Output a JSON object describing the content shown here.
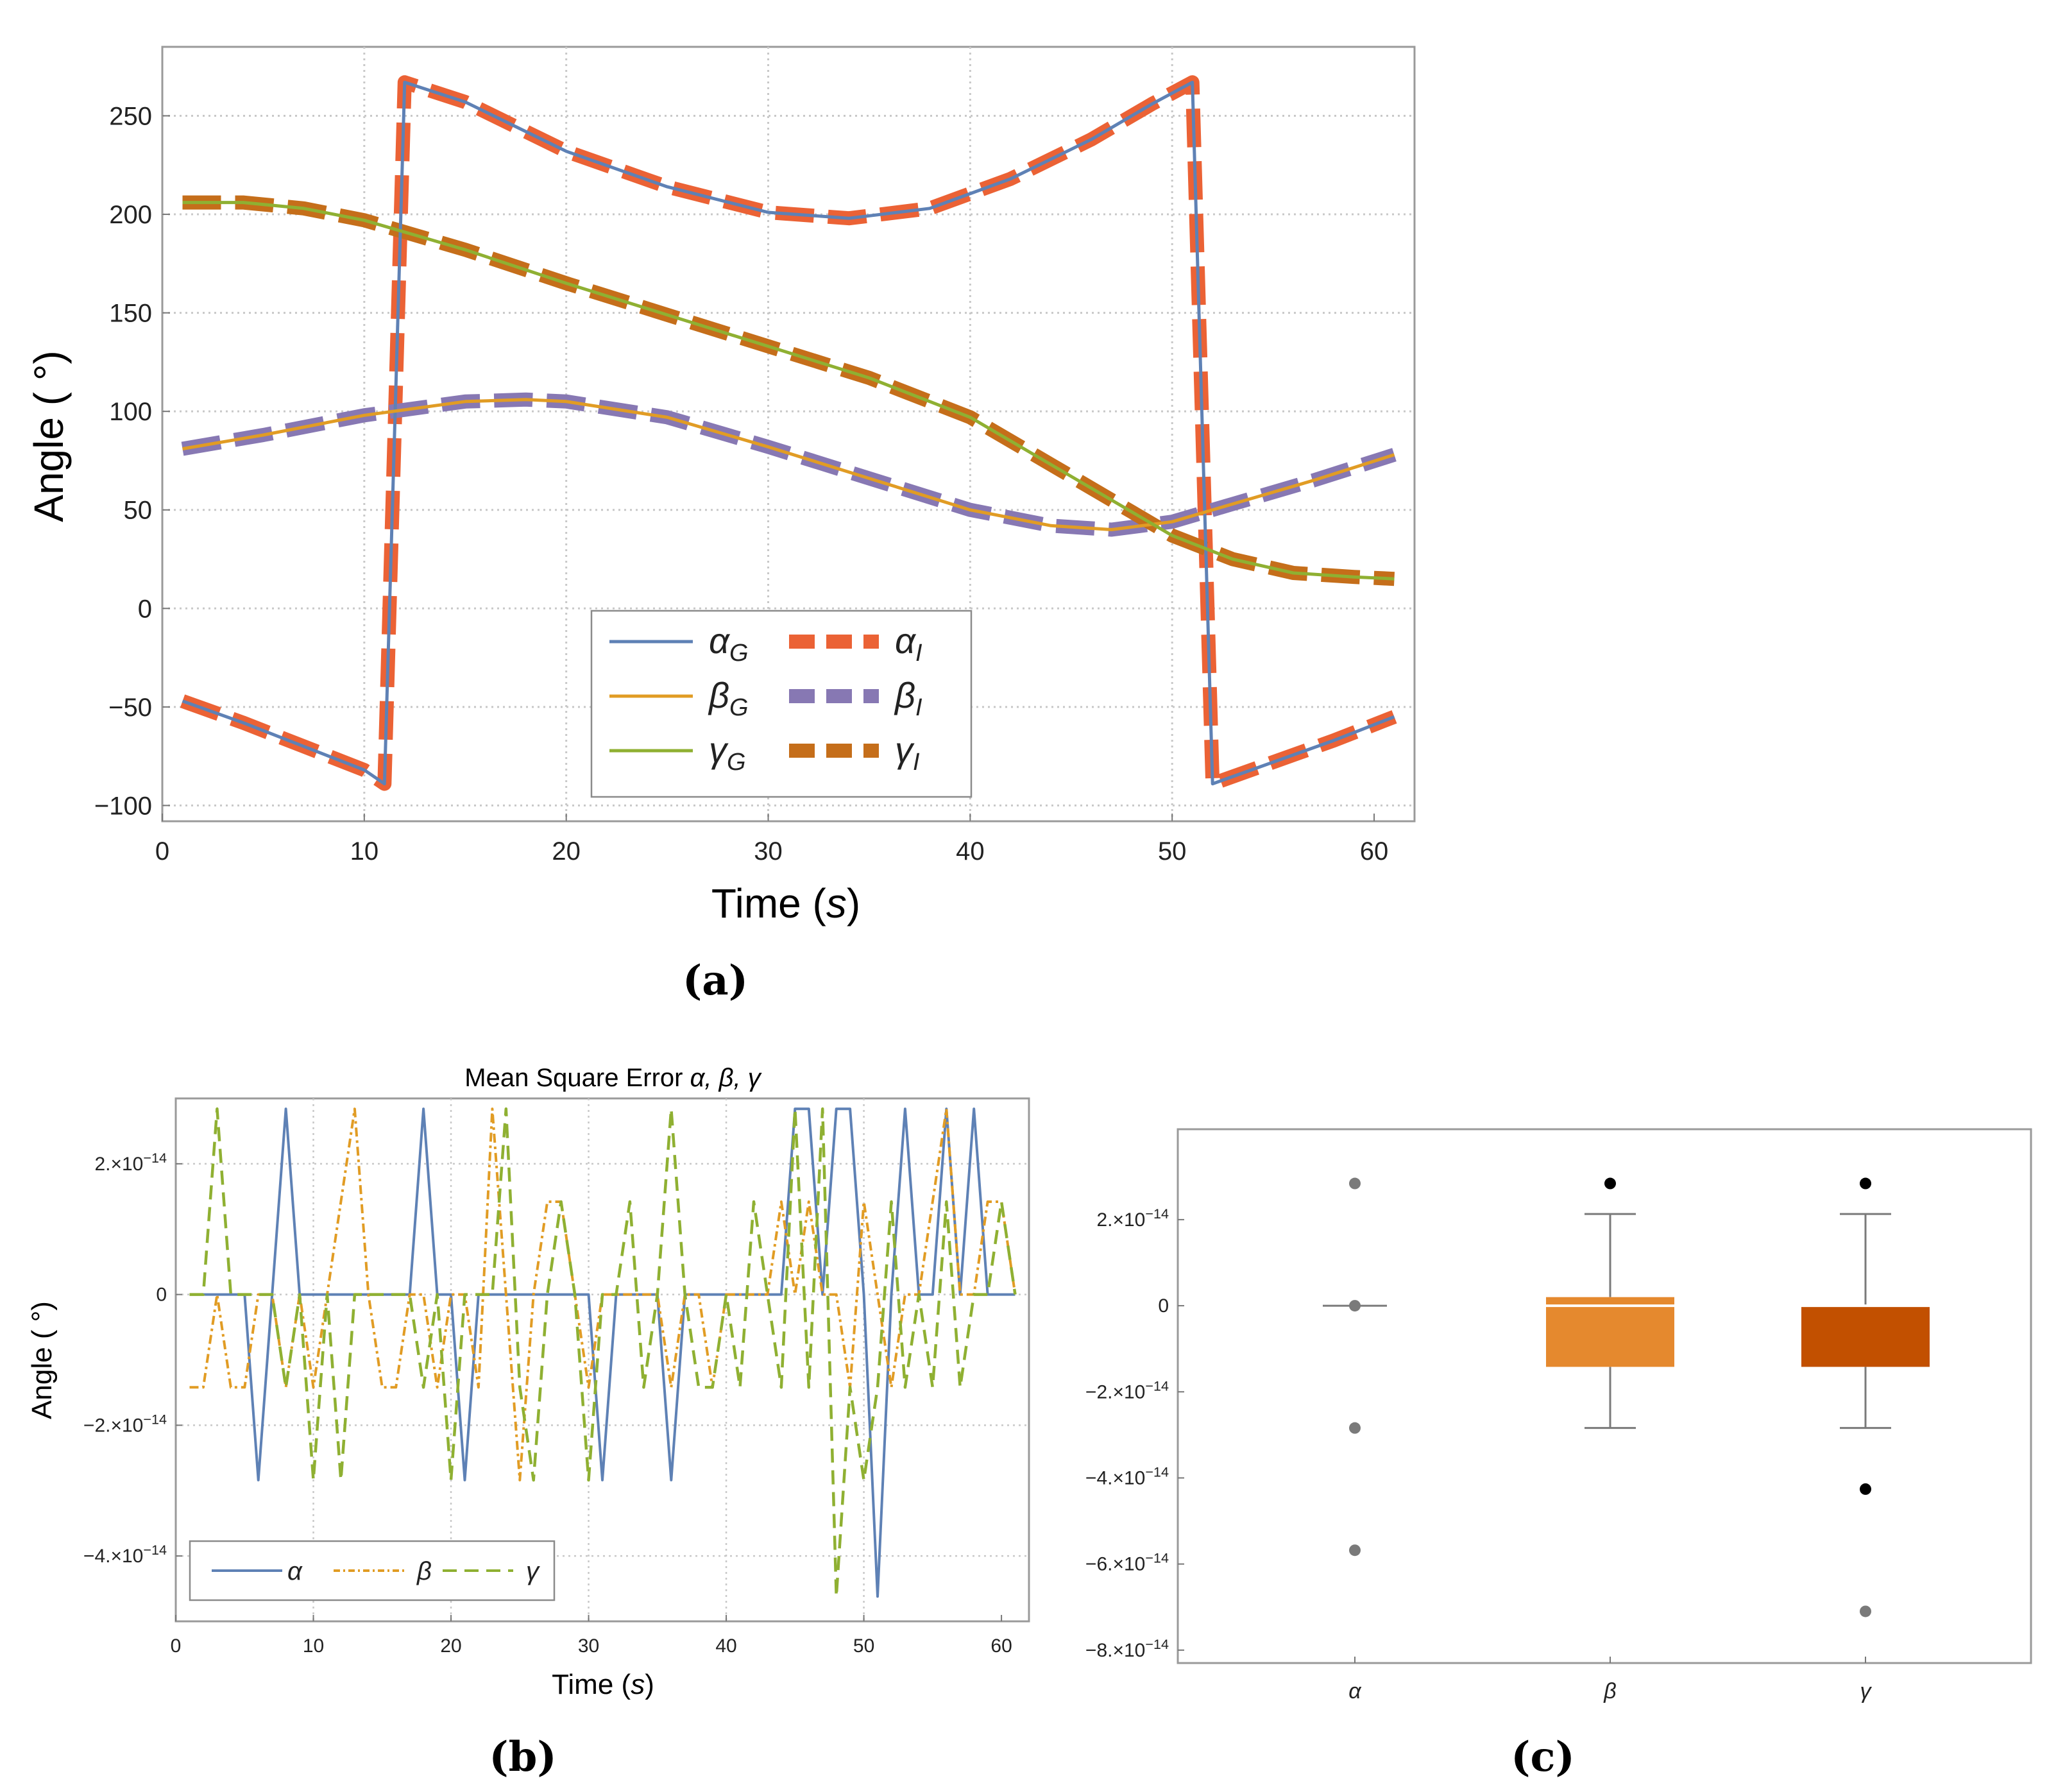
{
  "colors": {
    "alpha_g": "#5e81b5",
    "beta_g": "#e19c24",
    "gamma_g": "#8fb032",
    "alpha_i": "#eb6235",
    "beta_i": "#8778b3",
    "gamma_i": "#c56e1a",
    "box_beta": "#e5892e",
    "box_gamma": "#c25000",
    "grid": "#c8c8c8",
    "frame": "#9a9a9a"
  },
  "captions": {
    "a": "(a)",
    "b": "(b)",
    "c": "(c)"
  },
  "chart_data": [
    {
      "id": "a",
      "type": "line",
      "xlabel_main": "Time (",
      "xlabel_unit": "s",
      "xlabel_close": ")",
      "ylabel": "Angle ( °)",
      "xlim": [
        0,
        62
      ],
      "ylim": [
        -108,
        285
      ],
      "xticks": [
        "0",
        "10",
        "20",
        "30",
        "40",
        "50",
        "60"
      ],
      "xtick_values": [
        0,
        10,
        20,
        30,
        40,
        50,
        60
      ],
      "yticks": [
        "−100",
        "−50",
        "0",
        "50",
        "100",
        "150",
        "200",
        "250"
      ],
      "ytick_values": [
        -100,
        -50,
        0,
        50,
        100,
        150,
        200,
        250
      ],
      "grid_x": [
        10,
        20,
        30,
        40,
        50
      ],
      "grid_y": [
        -100,
        -50,
        0,
        50,
        100,
        150,
        200,
        250
      ],
      "legend": [
        {
          "sym": "α",
          "sub": "G",
          "key": "alpha_g",
          "style": "solid"
        },
        {
          "sym": "α",
          "sub": "I",
          "key": "alpha_i",
          "style": "dash-thick"
        },
        {
          "sym": "β",
          "sub": "G",
          "key": "beta_g",
          "style": "solid"
        },
        {
          "sym": "β",
          "sub": "I",
          "key": "beta_i",
          "style": "dash-thick"
        },
        {
          "sym": "γ",
          "sub": "G",
          "key": "gamma_g",
          "style": "solid"
        },
        {
          "sym": "γ",
          "sub": "I",
          "key": "gamma_i",
          "style": "dash-thick"
        }
      ],
      "series": [
        {
          "name": "alpha",
          "x": [
            1,
            4,
            7,
            10,
            11,
            12,
            15,
            20,
            25,
            30,
            34,
            38,
            42,
            46,
            49,
            51,
            52,
            55,
            58,
            61
          ],
          "y": [
            -47,
            -58,
            -70,
            -82,
            -89,
            267,
            257,
            232,
            214,
            201,
            198,
            203,
            218,
            238,
            256,
            267,
            -89,
            -78,
            -67,
            -55
          ]
        },
        {
          "name": "beta",
          "x": [
            1,
            5,
            10,
            15,
            18,
            20,
            25,
            30,
            35,
            40,
            44,
            47,
            50,
            53,
            57,
            61
          ],
          "y": [
            81,
            88,
            98,
            105,
            106,
            105,
            97,
            82,
            66,
            50,
            42,
            40,
            44,
            53,
            65,
            78
          ]
        },
        {
          "name": "gamma",
          "x": [
            1,
            4,
            7,
            10,
            15,
            20,
            25,
            30,
            35,
            40,
            45,
            48,
            50,
            53,
            56,
            59,
            61
          ],
          "y": [
            206,
            206,
            203,
            197,
            182,
            165,
            149,
            133,
            117,
            97,
            67,
            49,
            37,
            25,
            18,
            16,
            15
          ]
        }
      ]
    },
    {
      "id": "b",
      "type": "line",
      "title_prefix": "Mean Square Error ",
      "title_syms": "α, β, γ",
      "xlabel_main": "Time (",
      "xlabel_unit": "s",
      "xlabel_close": ")",
      "ylabel": "Angle ( °)",
      "xlim": [
        0,
        62
      ],
      "ylim": [
        -5e-14,
        3e-14
      ],
      "xticks": [
        "0",
        "10",
        "20",
        "30",
        "40",
        "50",
        "60"
      ],
      "xtick_values": [
        0,
        10,
        20,
        30,
        40,
        50,
        60
      ],
      "yticks": [
        {
          "v": 2e-14,
          "m": "2.×10",
          "e": "−14"
        },
        {
          "v": 0,
          "m": "0",
          "e": ""
        },
        {
          "v": -2e-14,
          "m": "−2.×10",
          "e": "−14"
        },
        {
          "v": -4e-14,
          "m": "−4.×10",
          "e": "−14"
        }
      ],
      "grid_x": [
        10,
        20,
        30,
        40,
        50
      ],
      "grid_y": [
        2e-14,
        0,
        -2e-14,
        -4e-14
      ],
      "legend": [
        {
          "sym": "α",
          "key": "alpha_g",
          "style": "solid"
        },
        {
          "sym": "β",
          "key": "beta_g",
          "style": "dotdash"
        },
        {
          "sym": "γ",
          "key": "gamma_g",
          "style": "dash"
        }
      ],
      "series": [
        {
          "name": "alpha",
          "x": [
            1,
            2,
            3,
            4,
            5,
            6,
            7,
            8,
            9,
            10,
            11,
            12,
            13,
            14,
            15,
            16,
            17,
            18,
            19,
            20,
            21,
            22,
            23,
            24,
            25,
            26,
            27,
            28,
            29,
            30,
            31,
            32,
            33,
            34,
            35,
            36,
            37,
            38,
            39,
            40,
            41,
            42,
            43,
            44,
            45,
            46,
            47,
            48,
            49,
            50,
            51,
            52,
            53,
            54,
            55,
            56,
            57,
            58,
            59,
            60,
            61
          ],
          "y": [
            0,
            0,
            0,
            0,
            0,
            -2.84e-14,
            0,
            2.84e-14,
            0,
            0,
            0,
            0,
            0,
            0,
            0,
            0,
            0,
            2.84e-14,
            0,
            0,
            -2.84e-14,
            0,
            0,
            0,
            0,
            0,
            0,
            0,
            0,
            0,
            -2.84e-14,
            0,
            0,
            0,
            0,
            -2.84e-14,
            0,
            0,
            0,
            0,
            0,
            0,
            0,
            0,
            2.84e-14,
            2.84e-14,
            0,
            2.84e-14,
            2.84e-14,
            0,
            -4.62e-14,
            0,
            2.84e-14,
            0,
            0,
            2.84e-14,
            0,
            2.84e-14,
            0,
            0,
            0
          ]
        },
        {
          "name": "beta",
          "x": [
            1,
            2,
            3,
            4,
            5,
            6,
            7,
            8,
            9,
            10,
            11,
            12,
            13,
            14,
            15,
            16,
            17,
            18,
            19,
            20,
            21,
            22,
            23,
            24,
            25,
            26,
            27,
            28,
            29,
            30,
            31,
            32,
            33,
            34,
            35,
            36,
            37,
            38,
            39,
            40,
            41,
            42,
            43,
            44,
            45,
            46,
            47,
            48,
            49,
            50,
            51,
            52,
            53,
            54,
            55,
            56,
            57,
            58,
            59,
            60,
            61
          ],
          "y": [
            -1.42e-14,
            -1.42e-14,
            0,
            -1.42e-14,
            -1.42e-14,
            0,
            0,
            -1.42e-14,
            0,
            -1.42e-14,
            0,
            1.42e-14,
            2.84e-14,
            0,
            -1.42e-14,
            -1.42e-14,
            0,
            0,
            -1.42e-14,
            0,
            0,
            -1.42e-14,
            2.84e-14,
            0,
            -2.84e-14,
            0,
            1.42e-14,
            1.42e-14,
            0,
            -1.42e-14,
            0,
            0,
            0,
            0,
            0,
            -1.42e-14,
            0,
            0,
            -1.42e-14,
            0,
            0,
            0,
            0,
            1.42e-14,
            0,
            1.42e-14,
            0,
            0,
            -1.42e-14,
            1.42e-14,
            0,
            -1.42e-14,
            0,
            0,
            1.42e-14,
            2.84e-14,
            0,
            0,
            1.42e-14,
            1.42e-14,
            0
          ]
        },
        {
          "name": "gamma",
          "x": [
            1,
            2,
            3,
            4,
            5,
            6,
            7,
            8,
            9,
            10,
            11,
            12,
            13,
            14,
            15,
            16,
            17,
            18,
            19,
            20,
            21,
            22,
            23,
            24,
            25,
            26,
            27,
            28,
            29,
            30,
            31,
            32,
            33,
            34,
            35,
            36,
            37,
            38,
            39,
            40,
            41,
            42,
            43,
            44,
            45,
            46,
            47,
            48,
            49,
            50,
            51,
            52,
            53,
            54,
            55,
            56,
            57,
            58,
            59,
            60,
            61
          ],
          "y": [
            0,
            0,
            2.84e-14,
            0,
            0,
            0,
            0,
            -1.42e-14,
            0,
            -2.84e-14,
            0,
            -2.84e-14,
            0,
            0,
            0,
            0,
            0,
            -1.42e-14,
            0,
            -2.84e-14,
            0,
            0,
            0,
            2.84e-14,
            -1.42e-14,
            -2.84e-14,
            0,
            1.42e-14,
            0,
            -2.84e-14,
            0,
            0,
            1.42e-14,
            -1.42e-14,
            0,
            2.84e-14,
            0,
            -1.42e-14,
            -1.42e-14,
            0,
            -1.42e-14,
            1.42e-14,
            0,
            -1.42e-14,
            2.84e-14,
            -1.42e-14,
            2.84e-14,
            -4.62e-14,
            -1.42e-14,
            -2.84e-14,
            -1.42e-14,
            1.42e-14,
            -1.42e-14,
            0,
            -1.42e-14,
            1.42e-14,
            -1.42e-14,
            0,
            0,
            1.42e-14,
            0
          ]
        }
      ]
    },
    {
      "id": "c",
      "type": "box",
      "categories": [
        "α",
        "β",
        "γ"
      ],
      "ylim": [
        -8.3e-14,
        4.1e-14
      ],
      "yticks": [
        {
          "v": 2e-14,
          "m": "2.×10",
          "e": "−14"
        },
        {
          "v": 0,
          "m": "0",
          "e": ""
        },
        {
          "v": -2e-14,
          "m": "−2.×10",
          "e": "−14"
        },
        {
          "v": -4e-14,
          "m": "−4.×10",
          "e": "−14"
        },
        {
          "v": -6e-14,
          "m": "−6.×10",
          "e": "−14"
        },
        {
          "v": -8e-14,
          "m": "−8.×10",
          "e": "−14"
        }
      ],
      "boxes": [
        {
          "name": "α",
          "min": 0,
          "q1": 0,
          "median": 0,
          "q3": 0,
          "max": 0,
          "fill": "",
          "outliers": [
            {
              "v": 2.84e-14,
              "c": "#7a7a7a"
            },
            {
              "v": 0,
              "c": "#7a7a7a"
            },
            {
              "v": -2.84e-14,
              "c": "#7a7a7a"
            },
            {
              "v": -5.68e-14,
              "c": "#7a7a7a"
            }
          ]
        },
        {
          "name": "β",
          "min": -2.84e-14,
          "q1": -1.42e-14,
          "median": 0,
          "q3": 2e-15,
          "max": 2.13e-14,
          "fill": "box_beta",
          "outliers": [
            {
              "v": 2.84e-14,
              "c": "#000000"
            }
          ]
        },
        {
          "name": "γ",
          "min": -2.84e-14,
          "q1": -1.42e-14,
          "median": 0,
          "q3": 0,
          "max": 2.13e-14,
          "fill": "box_gamma",
          "outliers": [
            {
              "v": 2.84e-14,
              "c": "#000000"
            },
            {
              "v": -4.26e-14,
              "c": "#000000"
            },
            {
              "v": -7.1e-14,
              "c": "#7a7a7a"
            }
          ]
        }
      ]
    }
  ]
}
